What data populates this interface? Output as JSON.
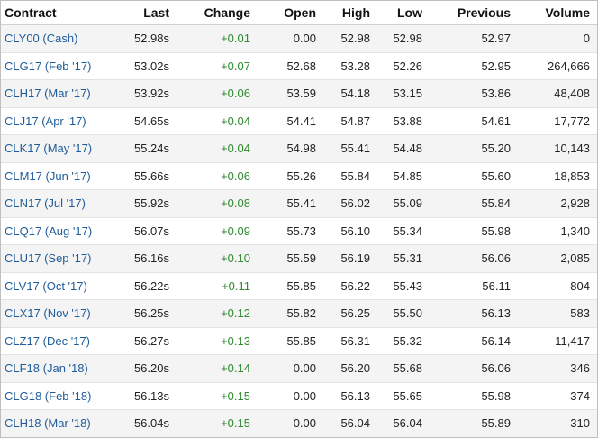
{
  "table": {
    "headers": {
      "contract": "Contract",
      "last": "Last",
      "change": "Change",
      "open": "Open",
      "high": "High",
      "low": "Low",
      "previous": "Previous",
      "volume": "Volume"
    },
    "rows": [
      {
        "contract": "CLY00 (Cash)",
        "last": "52.98s",
        "change": "+0.01",
        "open": "0.00",
        "high": "52.98",
        "low": "52.98",
        "previous": "52.97",
        "volume": "0"
      },
      {
        "contract": "CLG17 (Feb '17)",
        "last": "53.02s",
        "change": "+0.07",
        "open": "52.68",
        "high": "53.28",
        "low": "52.26",
        "previous": "52.95",
        "volume": "264,666"
      },
      {
        "contract": "CLH17 (Mar '17)",
        "last": "53.92s",
        "change": "+0.06",
        "open": "53.59",
        "high": "54.18",
        "low": "53.15",
        "previous": "53.86",
        "volume": "48,408"
      },
      {
        "contract": "CLJ17 (Apr '17)",
        "last": "54.65s",
        "change": "+0.04",
        "open": "54.41",
        "high": "54.87",
        "low": "53.88",
        "previous": "54.61",
        "volume": "17,772"
      },
      {
        "contract": "CLK17 (May '17)",
        "last": "55.24s",
        "change": "+0.04",
        "open": "54.98",
        "high": "55.41",
        "low": "54.48",
        "previous": "55.20",
        "volume": "10,143"
      },
      {
        "contract": "CLM17 (Jun '17)",
        "last": "55.66s",
        "change": "+0.06",
        "open": "55.26",
        "high": "55.84",
        "low": "54.85",
        "previous": "55.60",
        "volume": "18,853"
      },
      {
        "contract": "CLN17 (Jul '17)",
        "last": "55.92s",
        "change": "+0.08",
        "open": "55.41",
        "high": "56.02",
        "low": "55.09",
        "previous": "55.84",
        "volume": "2,928"
      },
      {
        "contract": "CLQ17 (Aug '17)",
        "last": "56.07s",
        "change": "+0.09",
        "open": "55.73",
        "high": "56.10",
        "low": "55.34",
        "previous": "55.98",
        "volume": "1,340"
      },
      {
        "contract": "CLU17 (Sep '17)",
        "last": "56.16s",
        "change": "+0.10",
        "open": "55.59",
        "high": "56.19",
        "low": "55.31",
        "previous": "56.06",
        "volume": "2,085"
      },
      {
        "contract": "CLV17 (Oct '17)",
        "last": "56.22s",
        "change": "+0.11",
        "open": "55.85",
        "high": "56.22",
        "low": "55.43",
        "previous": "56.11",
        "volume": "804"
      },
      {
        "contract": "CLX17 (Nov '17)",
        "last": "56.25s",
        "change": "+0.12",
        "open": "55.82",
        "high": "56.25",
        "low": "55.50",
        "previous": "56.13",
        "volume": "583"
      },
      {
        "contract": "CLZ17 (Dec '17)",
        "last": "56.27s",
        "change": "+0.13",
        "open": "55.85",
        "high": "56.31",
        "low": "55.32",
        "previous": "56.14",
        "volume": "11,417"
      },
      {
        "contract": "CLF18 (Jan '18)",
        "last": "56.20s",
        "change": "+0.14",
        "open": "0.00",
        "high": "56.20",
        "low": "55.68",
        "previous": "56.06",
        "volume": "346"
      },
      {
        "contract": "CLG18 (Feb '18)",
        "last": "56.13s",
        "change": "+0.15",
        "open": "0.00",
        "high": "56.13",
        "low": "55.65",
        "previous": "55.98",
        "volume": "374"
      },
      {
        "contract": "CLH18 (Mar '18)",
        "last": "56.04s",
        "change": "+0.15",
        "open": "0.00",
        "high": "56.04",
        "low": "56.04",
        "previous": "55.89",
        "volume": "310"
      }
    ]
  },
  "colors": {
    "positive_change": "#2e8b2e",
    "contract_link": "#1f5c99",
    "row_stripe": "#f4f4f4"
  }
}
